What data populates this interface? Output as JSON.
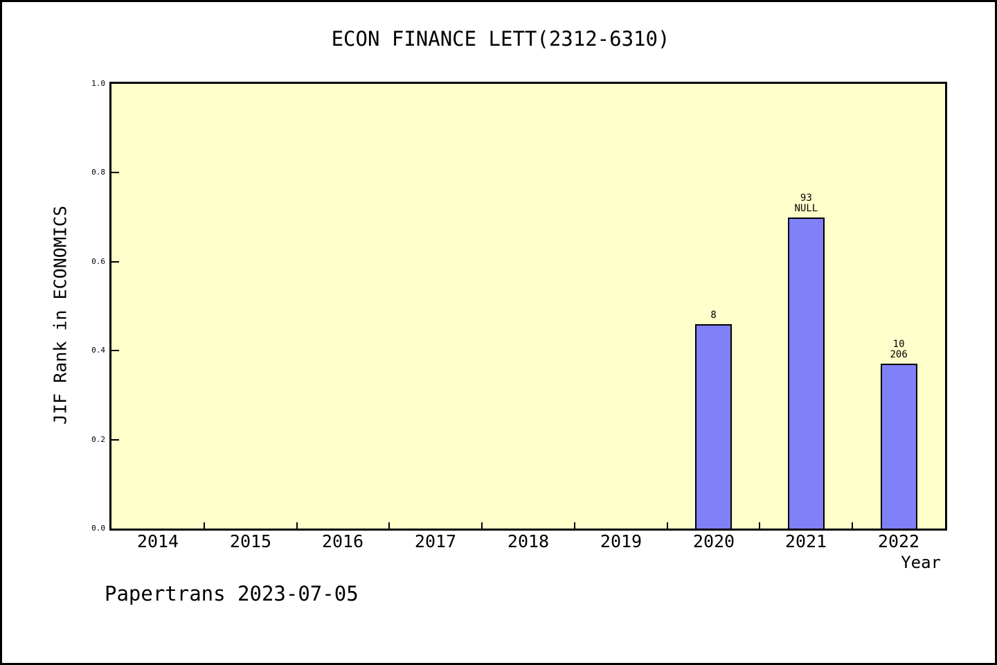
{
  "title": "ECON FINANCE LETT(2312-6310)",
  "footer": "Papertrans 2023-07-05",
  "colors": {
    "page_bg": "#ffffff",
    "plot_bg": "#ffffcc",
    "bar_fill": "#8080f8",
    "bar_border": "#000000",
    "axis": "#000000",
    "text": "#000000"
  },
  "chart_data": {
    "type": "bar",
    "title": "ECON FINANCE LETT(2312-6310)",
    "xlabel": "Year",
    "ylabel": "JIF Rank in ECONOMICS",
    "categories": [
      "2014",
      "2015",
      "2016",
      "2017",
      "2018",
      "2019",
      "2020",
      "2021",
      "2022"
    ],
    "values": [
      null,
      null,
      null,
      null,
      null,
      null,
      0.46,
      0.7,
      0.37
    ],
    "bar_labels": [
      null,
      null,
      null,
      null,
      null,
      null,
      [
        "8"
      ],
      [
        "93",
        "NULL"
      ],
      [
        "10",
        "206"
      ]
    ],
    "ylim": [
      0.0,
      1.0
    ],
    "yticks": [
      "0.0",
      "0.2",
      "0.4",
      "0.6",
      "0.8",
      "1.0"
    ],
    "grid": false,
    "legend": null
  }
}
